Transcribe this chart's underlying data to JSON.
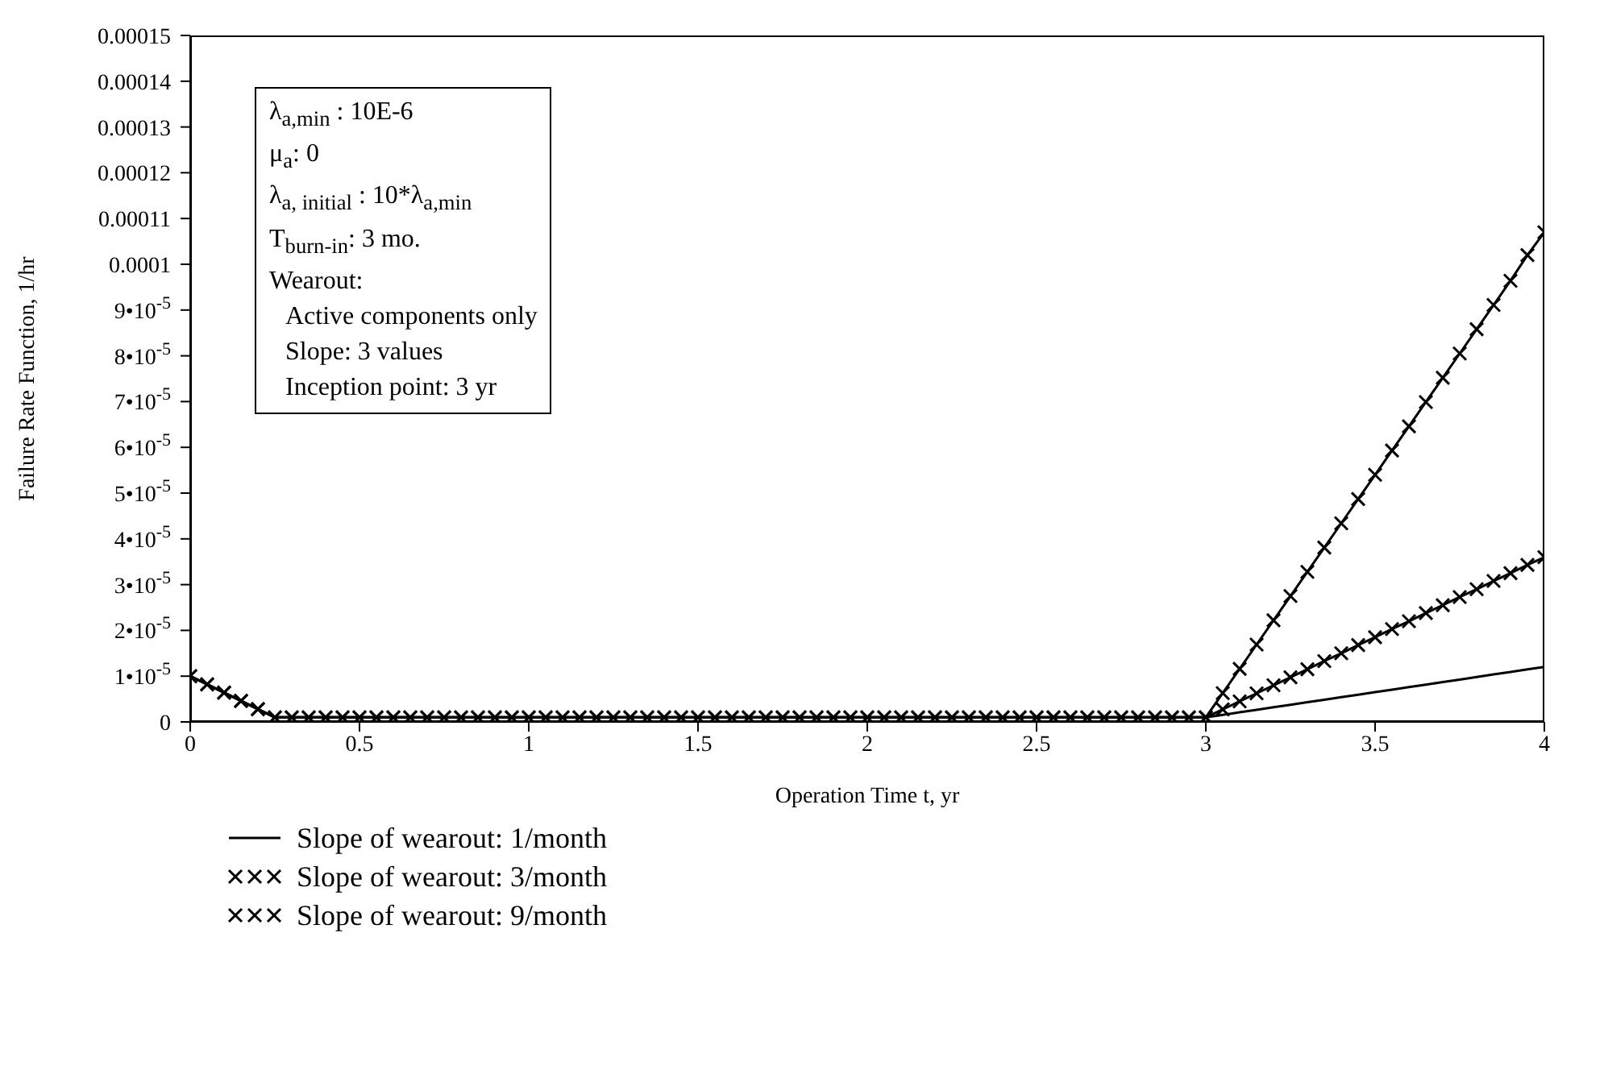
{
  "chart_data": {
    "type": "line",
    "xlabel": "Operation Time t, yr",
    "ylabel": "Failure Rate Function, 1/hr",
    "x": [
      0,
      0.05,
      0.1,
      0.15,
      0.2,
      0.25,
      0.3,
      0.35,
      0.4,
      0.45,
      0.5,
      0.55,
      0.6,
      0.65,
      0.7,
      0.75,
      0.8,
      0.85,
      0.9,
      0.95,
      1,
      1.05,
      1.1,
      1.15,
      1.2,
      1.25,
      1.3,
      1.35,
      1.4,
      1.45,
      1.5,
      1.55,
      1.6,
      1.65,
      1.7,
      1.75,
      1.8,
      1.85,
      1.9,
      1.95,
      2,
      2.05,
      2.1,
      2.15,
      2.2,
      2.25,
      2.3,
      2.35,
      2.4,
      2.45,
      2.5,
      2.55,
      2.6,
      2.65,
      2.7,
      2.75,
      2.8,
      2.85,
      2.9,
      2.95,
      3,
      3.05,
      3.1,
      3.15,
      3.2,
      3.25,
      3.3,
      3.35,
      3.4,
      3.45,
      3.5,
      3.55,
      3.6,
      3.65,
      3.7,
      3.75,
      3.8,
      3.85,
      3.9,
      3.95,
      4
    ],
    "series": [
      {
        "name": "Slope of wearout: 1/month",
        "color": "#000000",
        "values": [
          1e-05,
          8.2e-06,
          6.4e-06,
          4.6e-06,
          2.8e-06,
          1e-06,
          1e-06,
          1e-06,
          1e-06,
          1e-06,
          1e-06,
          1e-06,
          1e-06,
          1e-06,
          1e-06,
          1e-06,
          1e-06,
          1e-06,
          1e-06,
          1e-06,
          1e-06,
          1e-06,
          1e-06,
          1e-06,
          1e-06,
          1e-06,
          1e-06,
          1e-06,
          1e-06,
          1e-06,
          1e-06,
          1e-06,
          1e-06,
          1e-06,
          1e-06,
          1e-06,
          1e-06,
          1e-06,
          1e-06,
          1e-06,
          1e-06,
          1e-06,
          1e-06,
          1e-06,
          1e-06,
          1e-06,
          1e-06,
          1e-06,
          1e-06,
          1e-06,
          1e-06,
          1e-06,
          1e-06,
          1e-06,
          1e-06,
          1e-06,
          1e-06,
          1e-06,
          1e-06,
          1e-06,
          1e-06,
          1.55e-06,
          2.1e-06,
          2.65e-06,
          3.2e-06,
          3.75e-06,
          4.3e-06,
          4.85e-06,
          5.4e-06,
          5.95e-06,
          6.5e-06,
          7.05e-06,
          7.6e-06,
          8.15e-06,
          8.7e-06,
          9.25e-06,
          9.8e-06,
          1.04e-05,
          1.09e-05,
          1.15e-05,
          1.2e-05
        ]
      },
      {
        "name": "Slope of wearout: 3/month",
        "color": "#000000",
        "marker": "cross",
        "values": [
          1e-05,
          8.2e-06,
          6.4e-06,
          4.6e-06,
          2.8e-06,
          1e-06,
          1e-06,
          1e-06,
          1e-06,
          1e-06,
          1e-06,
          1e-06,
          1e-06,
          1e-06,
          1e-06,
          1e-06,
          1e-06,
          1e-06,
          1e-06,
          1e-06,
          1e-06,
          1e-06,
          1e-06,
          1e-06,
          1e-06,
          1e-06,
          1e-06,
          1e-06,
          1e-06,
          1e-06,
          1e-06,
          1e-06,
          1e-06,
          1e-06,
          1e-06,
          1e-06,
          1e-06,
          1e-06,
          1e-06,
          1e-06,
          1e-06,
          1e-06,
          1e-06,
          1e-06,
          1e-06,
          1e-06,
          1e-06,
          1e-06,
          1e-06,
          1e-06,
          1e-06,
          1e-06,
          1e-06,
          1e-06,
          1e-06,
          1e-06,
          1e-06,
          1e-06,
          1e-06,
          1e-06,
          1e-06,
          2.75e-06,
          4.5e-06,
          6.25e-06,
          8e-06,
          9.75e-06,
          1.15e-05,
          1.33e-05,
          1.5e-05,
          1.68e-05,
          1.85e-05,
          2.03e-05,
          2.2e-05,
          2.38e-05,
          2.55e-05,
          2.73e-05,
          2.9e-05,
          3.08e-05,
          3.25e-05,
          3.43e-05,
          3.6e-05
        ]
      },
      {
        "name": "Slope of wearout: 9/month",
        "color": "#000000",
        "marker": "cross",
        "values": [
          1e-05,
          8.2e-06,
          6.4e-06,
          4.6e-06,
          2.8e-06,
          1e-06,
          1e-06,
          1e-06,
          1e-06,
          1e-06,
          1e-06,
          1e-06,
          1e-06,
          1e-06,
          1e-06,
          1e-06,
          1e-06,
          1e-06,
          1e-06,
          1e-06,
          1e-06,
          1e-06,
          1e-06,
          1e-06,
          1e-06,
          1e-06,
          1e-06,
          1e-06,
          1e-06,
          1e-06,
          1e-06,
          1e-06,
          1e-06,
          1e-06,
          1e-06,
          1e-06,
          1e-06,
          1e-06,
          1e-06,
          1e-06,
          1e-06,
          1e-06,
          1e-06,
          1e-06,
          1e-06,
          1e-06,
          1e-06,
          1e-06,
          1e-06,
          1e-06,
          1e-06,
          1e-06,
          1e-06,
          1e-06,
          1e-06,
          1e-06,
          1e-06,
          1e-06,
          1e-06,
          1e-06,
          1e-06,
          6.3e-06,
          1.16e-05,
          1.69e-05,
          2.22e-05,
          2.75e-05,
          3.28e-05,
          3.81e-05,
          4.34e-05,
          4.87e-05,
          5.4e-05,
          5.93e-05,
          6.46e-05,
          6.99e-05,
          7.52e-05,
          8.05e-05,
          8.58e-05,
          9.11e-05,
          9.64e-05,
          0.000102,
          0.000107
        ]
      }
    ],
    "xlim": [
      0,
      4
    ],
    "xticks": [
      0,
      0.5,
      1,
      1.5,
      2,
      2.5,
      3,
      3.5,
      4
    ],
    "ylim": [
      0,
      0.00015
    ],
    "yticks": [
      0,
      {
        "value": 1e-05,
        "label": "1•10$^{-5}$"
      },
      {
        "value": 2e-05,
        "label": "2•10$^{-5}$"
      },
      {
        "value": 3e-05,
        "label": "3•10$^{-5}$"
      },
      {
        "value": 4e-05,
        "label": "4•10$^{-5}$"
      },
      {
        "value": 5e-05,
        "label": "5•10$^{-5}$"
      },
      {
        "value": 6e-05,
        "label": "6•10$^{-5}$"
      },
      {
        "value": 7e-05,
        "label": "7•10$^{-5}$"
      },
      {
        "value": 8e-05,
        "label": "8•10$^{-5}$"
      },
      {
        "value": 9e-05,
        "label": "9•10$^{-5}$"
      },
      0.0001,
      0.00011,
      0.00012,
      0.00013,
      0.00014,
      0.00015
    ],
    "annotations": [
      "λ$_{a,min}$ : 10E-6",
      "μ$_{a}$: 0",
      "λ$_{a, initial}$ : 10*λ$_{a,min}$",
      "T$_{burn-in}$: 3 mo.",
      "Wearout:",
      "Active components only",
      "Slope: 3 values",
      "Inception point: 3 yr"
    ],
    "legend": "bottom"
  }
}
